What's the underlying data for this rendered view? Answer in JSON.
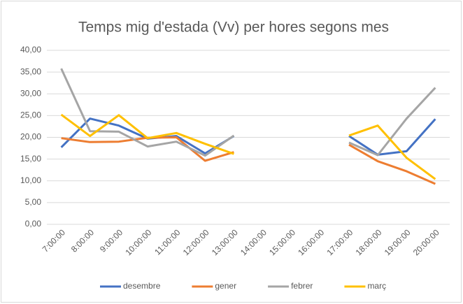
{
  "chart_data": {
    "type": "line",
    "title": "Temps mig d'estada (Vv) per hores segons mes",
    "categories": [
      "7:00:00",
      "8:00:00",
      "9:00:00",
      "10:00:00",
      "11:00:00",
      "12:00:00",
      "13:00:00",
      "14:00:00",
      "15:00:00",
      "16:00:00",
      "17:00:00",
      "18:00:00",
      "19:00:00",
      "20:00:00"
    ],
    "series": [
      {
        "name": "desembre",
        "color": "#4472c4",
        "values": [
          17.7,
          24.3,
          22.7,
          19.7,
          20.3,
          16.3,
          20.3,
          null,
          null,
          null,
          20.3,
          16.0,
          16.8,
          24.2
        ]
      },
      {
        "name": "gener",
        "color": "#ed7d31",
        "values": [
          19.8,
          18.9,
          19.0,
          19.9,
          20.0,
          14.6,
          16.6,
          null,
          null,
          null,
          18.3,
          14.5,
          12.2,
          9.3
        ]
      },
      {
        "name": "febrer",
        "color": "#a5a5a5",
        "values": [
          35.8,
          21.4,
          21.3,
          17.9,
          19.0,
          15.8,
          20.4,
          null,
          null,
          null,
          18.8,
          15.9,
          24.3,
          31.4
        ]
      },
      {
        "name": "març",
        "color": "#ffc000",
        "values": [
          25.2,
          20.3,
          25.1,
          19.8,
          21.0,
          18.5,
          16.2,
          null,
          null,
          null,
          20.4,
          22.7,
          15.3,
          10.4
        ]
      }
    ],
    "ylim": [
      0,
      40
    ],
    "yticks": [
      {
        "value": 0,
        "label": "0,00"
      },
      {
        "value": 5,
        "label": "5,00"
      },
      {
        "value": 10,
        "label": "10,00"
      },
      {
        "value": 15,
        "label": "15,00"
      },
      {
        "value": 20,
        "label": "20,00"
      },
      {
        "value": 25,
        "label": "25,00"
      },
      {
        "value": 30,
        "label": "30,00"
      },
      {
        "value": 35,
        "label": "35,00"
      },
      {
        "value": 40,
        "label": "40,00"
      }
    ],
    "grid": true,
    "legend": "bottom"
  }
}
